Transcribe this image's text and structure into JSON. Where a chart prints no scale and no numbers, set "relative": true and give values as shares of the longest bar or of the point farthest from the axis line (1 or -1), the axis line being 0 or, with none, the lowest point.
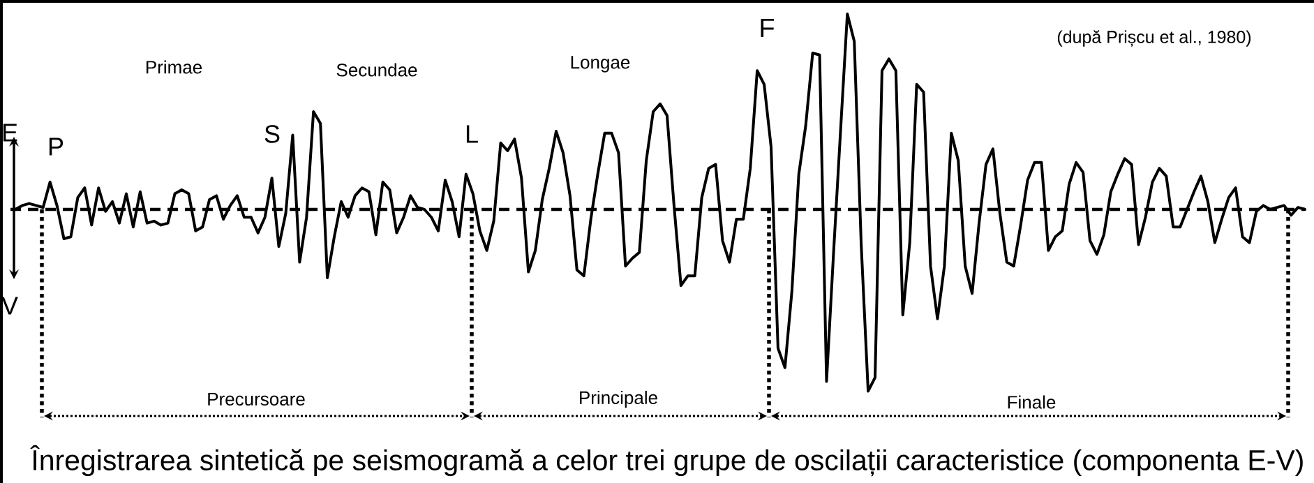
{
  "chart_data": {
    "type": "line",
    "relative": true,
    "categories": [
      null,
      null,
      null,
      null,
      null,
      null,
      null,
      null,
      null,
      null,
      null,
      null,
      null,
      null,
      null,
      null,
      null,
      null,
      null,
      null,
      null,
      null,
      null,
      null,
      null,
      null,
      null,
      null,
      null,
      null,
      null,
      null,
      null,
      null,
      null,
      null,
      null,
      null,
      null,
      null,
      null,
      null,
      null,
      null,
      null,
      null,
      null,
      null,
      null,
      null,
      null,
      null,
      null,
      null,
      null,
      null,
      null,
      null,
      null,
      null,
      null,
      null,
      null,
      null,
      null,
      null,
      null,
      null,
      null,
      null,
      null,
      null,
      null,
      null,
      null,
      null,
      null,
      null,
      null,
      null,
      null,
      null,
      null,
      null,
      null,
      null,
      null,
      null,
      null,
      null,
      null,
      null,
      null,
      null,
      null,
      null,
      null,
      null,
      null,
      null,
      null,
      null,
      null,
      null,
      null,
      null,
      null,
      null,
      null,
      null,
      null,
      null,
      null,
      null,
      null,
      null,
      null,
      null,
      null,
      null,
      null,
      null,
      null,
      null,
      null,
      null,
      null,
      null,
      null,
      null,
      null,
      null,
      null,
      null,
      null,
      null,
      null,
      null,
      null,
      null,
      null,
      null,
      null,
      null,
      null,
      null,
      null,
      null,
      null,
      null,
      null,
      null,
      null,
      null,
      null,
      null,
      null,
      null,
      null,
      null,
      null,
      null,
      null,
      null,
      null,
      null,
      null,
      null,
      null,
      null,
      null,
      null,
      null,
      null,
      null,
      null,
      null,
      null,
      null,
      null,
      null,
      null,
      null,
      null,
      null,
      null,
      null
    ],
    "series": [
      {
        "color": "#000000",
        "values": [
          0,
          0.02,
          0.03,
          0.02,
          0.01,
          0.14,
          0.02,
          -0.15,
          -0.14,
          0.06,
          0.11,
          -0.08,
          0.11,
          -0.01,
          0.04,
          -0.07,
          0.08,
          -0.09,
          0.09,
          -0.07,
          -0.06,
          -0.08,
          -0.07,
          0.08,
          0.1,
          0.08,
          -0.11,
          -0.09,
          0.05,
          0.07,
          -0.05,
          0.02,
          0.07,
          -0.04,
          -0.04,
          -0.12,
          -0.04,
          0.16,
          -0.19,
          -0.02,
          0.38,
          -0.27,
          -0.04,
          0.5,
          0.44,
          -0.35,
          -0.14,
          0.04,
          -0.04,
          0.07,
          0.11,
          0.09,
          -0.13,
          0.14,
          0.1,
          -0.12,
          -0.04,
          0.07,
          0.01,
          0,
          -0.04,
          -0.11,
          0.15,
          0.04,
          -0.14,
          0.18,
          0.08,
          -0.11,
          -0.21,
          -0.06,
          0.34,
          0.3,
          0.36,
          0.16,
          -0.32,
          -0.21,
          0.05,
          0.21,
          0.4,
          0.29,
          0.07,
          -0.31,
          -0.34,
          -0.05,
          0.18,
          0.39,
          0.39,
          0.29,
          -0.29,
          -0.25,
          -0.22,
          0.25,
          0.5,
          0.54,
          0.48,
          0.02,
          -0.39,
          -0.34,
          -0.34,
          0.06,
          0.21,
          0.23,
          -0.16,
          -0.27,
          -0.05,
          -0.05,
          0.21,
          0.71,
          0.64,
          0.32,
          -0.71,
          -0.81,
          -0.42,
          0.18,
          0.43,
          0.8,
          0.79,
          -0.88,
          -0.23,
          0.39,
          1,
          0.86,
          -0.18,
          -0.93,
          -0.86,
          0.71,
          0.77,
          0.71,
          -0.54,
          -0.17,
          0.64,
          0.6,
          -0.29,
          -0.56,
          -0.29,
          0.39,
          0.25,
          -0.29,
          -0.43,
          -0.07,
          0.23,
          0.31,
          -0.02,
          -0.27,
          -0.29,
          -0.08,
          0.15,
          0.24,
          0.24,
          -0.21,
          -0.14,
          -0.11,
          0.13,
          0.24,
          0.19,
          -0.16,
          -0.23,
          -0.13,
          0.09,
          0.18,
          0.26,
          0.23,
          -0.18,
          -0.04,
          0.14,
          0.21,
          0.17,
          -0.09,
          -0.09,
          0,
          0.09,
          0.17,
          0.04,
          -0.17,
          -0.05,
          0.06,
          0.11,
          -0.14,
          -0.17,
          -0.01,
          0.02,
          0,
          0.01,
          0.02,
          -0.03,
          0.01,
          0
        ]
      }
    ],
    "ref_lines": [
      {
        "axis": "y",
        "value": 0,
        "line_style": "dashed"
      }
    ],
    "annotations": [
      "(după Prișcu et al., 1980)",
      "Primae",
      "Secundae",
      "Longae",
      "F",
      "E",
      "P",
      "S",
      "L",
      "V",
      "Precursoare",
      "Principale",
      "Finale",
      "Înregistrarea sintetică pe seismogramă a celor trei grupe de oscilații caracteristice (componenta E-V)"
    ]
  }
}
